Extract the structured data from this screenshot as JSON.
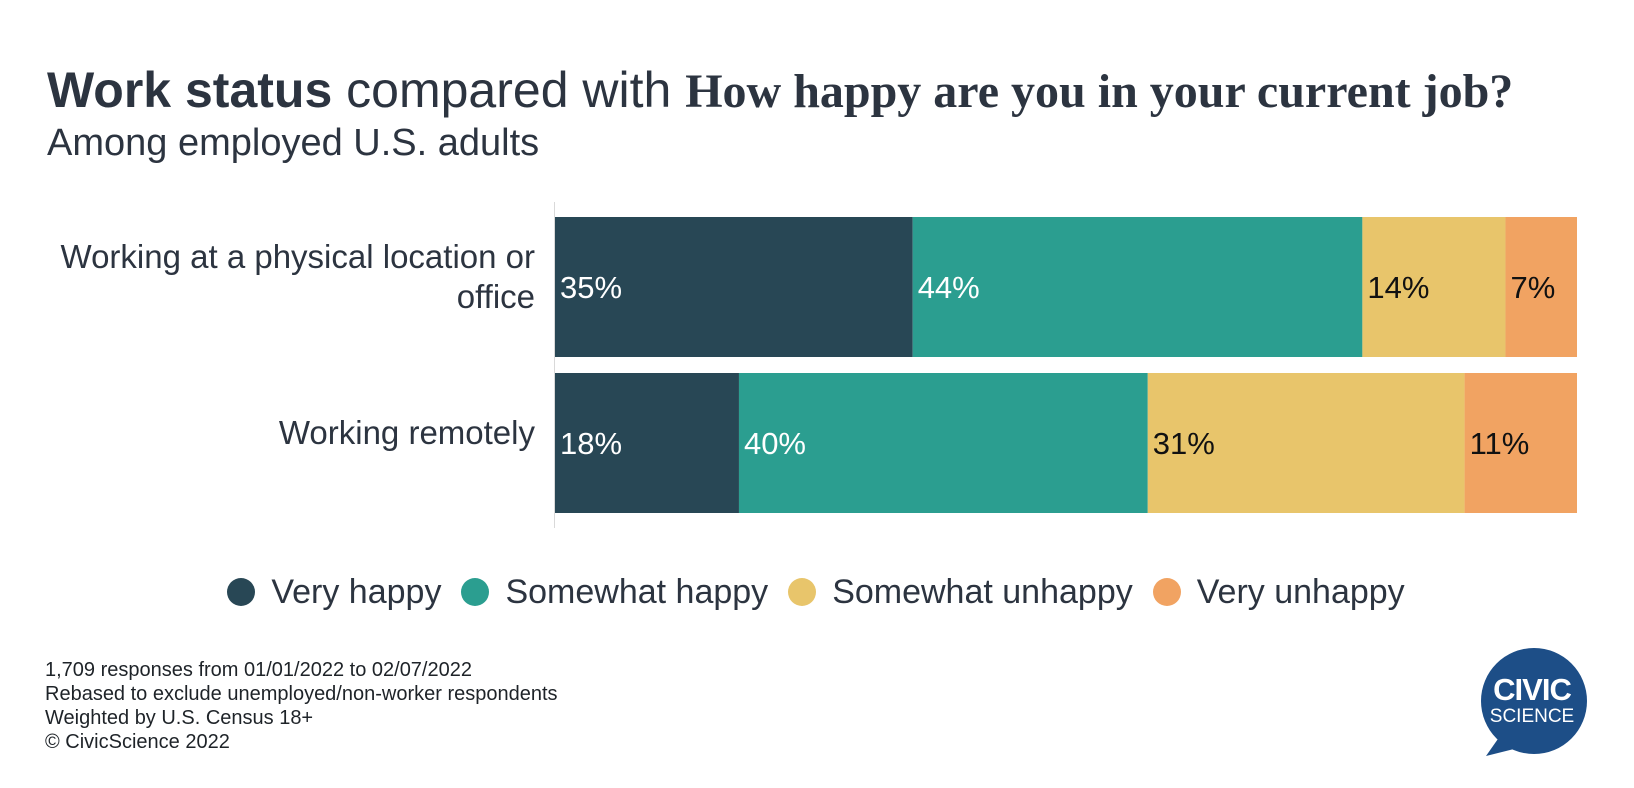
{
  "title": {
    "bold": "Work status",
    "middle": " compared with ",
    "question": "How happy are you in your current job?"
  },
  "subtitle": "Among employed U.S. adults",
  "chart_data": {
    "type": "bar",
    "orientation": "horizontal",
    "stacked": true,
    "categories": [
      "Working at a physical location or office",
      "Working remotely"
    ],
    "series": [
      {
        "name": "Very happy",
        "color": "#284755",
        "label_color": "#ffffff",
        "values": [
          35,
          18
        ],
        "labels": [
          "35%",
          "18%"
        ]
      },
      {
        "name": "Somewhat happy",
        "color": "#2b9e90",
        "label_color": "#ffffff",
        "values": [
          44,
          40
        ],
        "labels": [
          "44%",
          "40%"
        ]
      },
      {
        "name": "Somewhat unhappy",
        "color": "#e8c56b",
        "label_color": "#111111",
        "values": [
          14,
          31
        ],
        "labels": [
          "14%",
          "31%"
        ]
      },
      {
        "name": "Very unhappy",
        "color": "#f1a362",
        "label_color": "#111111",
        "values": [
          7,
          11
        ],
        "labels": [
          "7%",
          "11%"
        ]
      }
    ],
    "xlim": [
      0,
      100
    ],
    "grid": false,
    "legend_position": "bottom"
  },
  "footnotes": [
    "1,709 responses from 01/01/2022 to 02/07/2022",
    "Rebased to exclude unemployed/non-worker respondents",
    "Weighted by U.S. Census 18+",
    "© CivicScience 2022"
  ],
  "logo": {
    "word1": "CIVIC",
    "word2": "SCIENCE",
    "color": "#1d4e87"
  }
}
